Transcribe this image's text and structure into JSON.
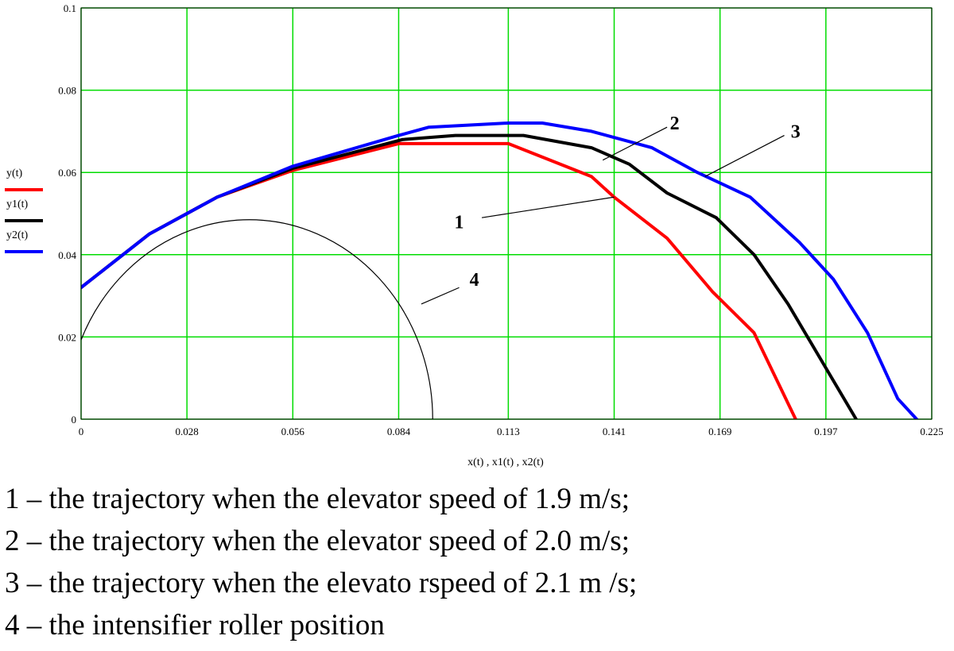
{
  "chart_data": {
    "type": "line",
    "title": "",
    "xlabel": "x(t) , x1(t) , x2(t)",
    "ylabel": "",
    "xlim": [
      0,
      0.225
    ],
    "ylim": [
      0,
      0.1
    ],
    "grid": true,
    "x_ticks": [
      "0",
      "0.028",
      "0.056",
      "0.084",
      "0.113",
      "0.141",
      "0.169",
      "0.197",
      "0.225"
    ],
    "y_ticks": [
      "0",
      "0.02",
      "0.04",
      "0.06",
      "0.08",
      "0.1"
    ],
    "legend_position": "left",
    "series": [
      {
        "name": "y(t)",
        "color": "#ff0000",
        "x": [
          0,
          0.018,
          0.036,
          0.056,
          0.084,
          0.099,
          0.113,
          0.135,
          0.141,
          0.155,
          0.167,
          0.178,
          0.189
        ],
        "y": [
          0.032,
          0.045,
          0.054,
          0.0605,
          0.067,
          0.067,
          0.067,
          0.059,
          0.054,
          0.044,
          0.031,
          0.021,
          0.0
        ]
      },
      {
        "name": "y1(t)",
        "color": "#000000",
        "x": [
          0,
          0.018,
          0.036,
          0.056,
          0.085,
          0.099,
          0.117,
          0.135,
          0.145,
          0.155,
          0.168,
          0.178,
          0.187,
          0.196,
          0.205
        ],
        "y": [
          0.032,
          0.045,
          0.054,
          0.061,
          0.068,
          0.069,
          0.069,
          0.066,
          0.062,
          0.055,
          0.049,
          0.04,
          0.028,
          0.014,
          0.0
        ]
      },
      {
        "name": "y2(t)",
        "color": "#0000ff",
        "x": [
          0,
          0.018,
          0.036,
          0.056,
          0.084,
          0.092,
          0.113,
          0.122,
          0.135,
          0.151,
          0.163,
          0.177,
          0.19,
          0.199,
          0.208,
          0.216,
          0.221
        ],
        "y": [
          0.032,
          0.045,
          0.054,
          0.0615,
          0.069,
          0.071,
          0.072,
          0.072,
          0.07,
          0.066,
          0.06,
          0.054,
          0.043,
          0.034,
          0.021,
          0.005,
          0.0
        ]
      }
    ],
    "roller": {
      "name": "",
      "color": "#000000",
      "center": [
        0.0445,
        0.0
      ],
      "radius": 0.0485
    },
    "callouts": [
      {
        "label": "1",
        "line_from": [
          0.141,
          0.054
        ],
        "line_to": [
          0.106,
          0.049
        ],
        "text_at": [
          0.1,
          0.048
        ]
      },
      {
        "label": "2",
        "line_from": [
          0.138,
          0.063
        ],
        "line_to": [
          0.155,
          0.071
        ],
        "text_at": [
          0.157,
          0.072
        ]
      },
      {
        "label": "3",
        "line_from": [
          0.165,
          0.059
        ],
        "line_to": [
          0.186,
          0.069
        ],
        "text_at": [
          0.189,
          0.07
        ]
      },
      {
        "label": "4",
        "line_from": [
          0.09,
          0.028
        ],
        "line_to": [
          0.1,
          0.032
        ],
        "text_at": [
          0.104,
          0.034
        ]
      }
    ]
  },
  "caption": {
    "lines": [
      "1 – the trajectory when the elevator speed of 1.9 m/s;",
      "2 – the trajectory when the elevator speed of 2.0 m/s;",
      "3 – the trajectory when the elevato rspeed of 2.1 m /s;",
      "4 – the intensifier roller position"
    ]
  }
}
